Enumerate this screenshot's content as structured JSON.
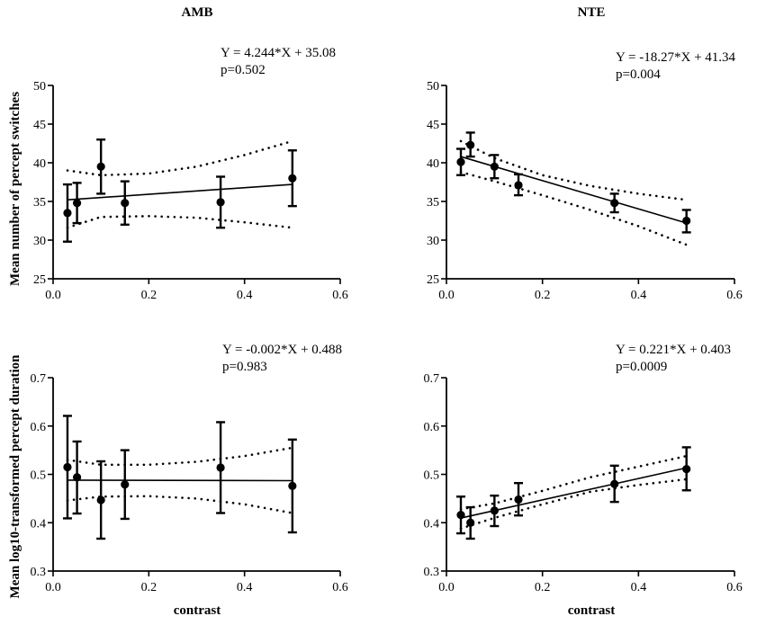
{
  "figure": {
    "column_titles": [
      "AMB",
      "NTE"
    ],
    "row_ylabels": [
      "Mean number of percept switches",
      "Mean log10-transformed percept duration"
    ],
    "xlabel": "contrast"
  },
  "chart_data": [
    {
      "type": "scatter",
      "panel": "top-left",
      "title": "AMB",
      "ylabel": "Mean number of percept switches",
      "xlabel": "",
      "xlim": [
        0,
        0.6
      ],
      "ylim": [
        25,
        50
      ],
      "xticks": [
        "0.0",
        "0.2",
        "0.4",
        "0.6"
      ],
      "yticks": [
        "25",
        "30",
        "35",
        "40",
        "45",
        "50"
      ],
      "x": [
        0.03,
        0.05,
        0.1,
        0.15,
        0.35,
        0.5
      ],
      "y": [
        33.5,
        34.8,
        39.5,
        34.8,
        34.9,
        38.0
      ],
      "err_low": [
        29.8,
        32.2,
        36.0,
        32.0,
        31.6,
        34.4
      ],
      "err_high": [
        37.2,
        37.4,
        43.0,
        37.6,
        38.2,
        41.6
      ],
      "fit": {
        "slope": 4.244,
        "intercept": 35.08
      },
      "ci_lower": [
        [
          0.03,
          31.6
        ],
        [
          0.1,
          33.0
        ],
        [
          0.2,
          33.1
        ],
        [
          0.3,
          32.9
        ],
        [
          0.4,
          32.3
        ],
        [
          0.5,
          31.6
        ]
      ],
      "ci_upper": [
        [
          0.03,
          39.0
        ],
        [
          0.1,
          38.4
        ],
        [
          0.2,
          38.6
        ],
        [
          0.3,
          39.5
        ],
        [
          0.4,
          41.0
        ],
        [
          0.5,
          42.8
        ]
      ],
      "equation": "Y = 4.244*X + 35.08",
      "p_value": "p=0.502"
    },
    {
      "type": "scatter",
      "panel": "top-right",
      "title": "NTE",
      "ylabel": "",
      "xlabel": "",
      "xlim": [
        0,
        0.6
      ],
      "ylim": [
        25,
        50
      ],
      "xticks": [
        "0.0",
        "0.2",
        "0.4",
        "0.6"
      ],
      "yticks": [
        "25",
        "30",
        "35",
        "40",
        "45",
        "50"
      ],
      "x": [
        0.03,
        0.05,
        0.1,
        0.15,
        0.35,
        0.5
      ],
      "y": [
        40.1,
        42.3,
        39.5,
        37.1,
        34.8,
        32.5
      ],
      "err_low": [
        38.4,
        40.8,
        38.0,
        35.8,
        33.6,
        31.0
      ],
      "err_high": [
        41.8,
        43.9,
        41.0,
        38.5,
        36.0,
        33.9
      ],
      "fit": {
        "slope": -18.27,
        "intercept": 41.34
      },
      "ci_lower": [
        [
          0.03,
          38.8
        ],
        [
          0.1,
          37.6
        ],
        [
          0.2,
          35.8
        ],
        [
          0.3,
          33.9
        ],
        [
          0.4,
          31.8
        ],
        [
          0.5,
          29.4
        ]
      ],
      "ci_upper": [
        [
          0.03,
          42.8
        ],
        [
          0.1,
          40.6
        ],
        [
          0.2,
          38.4
        ],
        [
          0.3,
          37.0
        ],
        [
          0.4,
          36.0
        ],
        [
          0.5,
          35.2
        ]
      ],
      "equation": "Y = -18.27*X + 41.34",
      "p_value": "p=0.004"
    },
    {
      "type": "scatter",
      "panel": "bottom-left",
      "title": "",
      "ylabel": "Mean log10-transformed percept duration",
      "xlabel": "contrast",
      "xlim": [
        0,
        0.6
      ],
      "ylim": [
        0.3,
        0.7
      ],
      "xticks": [
        "0.0",
        "0.2",
        "0.4",
        "0.6"
      ],
      "yticks": [
        "0.3",
        "0.4",
        "0.5",
        "0.6",
        "0.7"
      ],
      "x": [
        0.03,
        0.05,
        0.1,
        0.15,
        0.35,
        0.5
      ],
      "y": [
        0.515,
        0.494,
        0.447,
        0.479,
        0.514,
        0.476
      ],
      "err_low": [
        0.409,
        0.419,
        0.367,
        0.408,
        0.42,
        0.38
      ],
      "err_high": [
        0.621,
        0.568,
        0.527,
        0.55,
        0.608,
        0.572
      ],
      "fit": {
        "slope": -0.002,
        "intercept": 0.488
      },
      "ci_lower": [
        [
          0.03,
          0.446
        ],
        [
          0.1,
          0.454
        ],
        [
          0.2,
          0.455
        ],
        [
          0.3,
          0.45
        ],
        [
          0.4,
          0.438
        ],
        [
          0.5,
          0.42
        ]
      ],
      "ci_upper": [
        [
          0.03,
          0.53
        ],
        [
          0.1,
          0.52
        ],
        [
          0.2,
          0.52
        ],
        [
          0.3,
          0.526
        ],
        [
          0.4,
          0.538
        ],
        [
          0.5,
          0.555
        ]
      ],
      "equation": "Y = -0.002*X + 0.488",
      "p_value": "p=0.983"
    },
    {
      "type": "scatter",
      "panel": "bottom-right",
      "title": "",
      "ylabel": "",
      "xlabel": "contrast",
      "xlim": [
        0,
        0.6
      ],
      "ylim": [
        0.3,
        0.7
      ],
      "xticks": [
        "0.0",
        "0.2",
        "0.4",
        "0.6"
      ],
      "yticks": [
        "0.3",
        "0.4",
        "0.5",
        "0.6",
        "0.7"
      ],
      "x": [
        0.03,
        0.05,
        0.1,
        0.15,
        0.35,
        0.5
      ],
      "y": [
        0.416,
        0.4,
        0.425,
        0.448,
        0.48,
        0.511
      ],
      "err_low": [
        0.378,
        0.367,
        0.393,
        0.415,
        0.443,
        0.467
      ],
      "err_high": [
        0.454,
        0.432,
        0.456,
        0.482,
        0.518,
        0.556
      ],
      "fit": {
        "slope": 0.221,
        "intercept": 0.403
      },
      "ci_lower": [
        [
          0.03,
          0.388
        ],
        [
          0.1,
          0.41
        ],
        [
          0.2,
          0.438
        ],
        [
          0.3,
          0.464
        ],
        [
          0.4,
          0.478
        ],
        [
          0.5,
          0.49
        ]
      ],
      "ci_upper": [
        [
          0.03,
          0.428
        ],
        [
          0.1,
          0.44
        ],
        [
          0.2,
          0.466
        ],
        [
          0.3,
          0.494
        ],
        [
          0.4,
          0.516
        ],
        [
          0.5,
          0.538
        ]
      ],
      "equation": "Y = 0.221*X + 0.403",
      "p_value": "p=0.0009"
    }
  ]
}
